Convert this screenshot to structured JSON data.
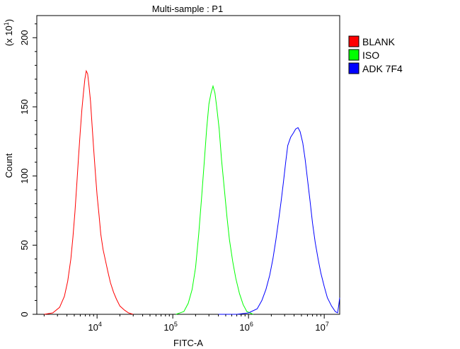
{
  "chart_data": {
    "type": "line",
    "title": "Multi-sample : P1",
    "xlabel": "FITC-A",
    "ylabel": "Count",
    "y_multiplier_label": "(x 10",
    "y_multiplier_exp": "1",
    "y_multiplier_close": ")",
    "x_scale": "log",
    "xlim": [
      1600,
      16000000
    ],
    "ylim": [
      0,
      216
    ],
    "y_ticks": [
      0,
      50,
      100,
      150,
      200
    ],
    "x_ticks": [
      {
        "base": "10",
        "exp": "4",
        "value": 10000
      },
      {
        "base": "10",
        "exp": "5",
        "value": 100000
      },
      {
        "base": "10",
        "exp": "6",
        "value": 1000000
      },
      {
        "base": "10",
        "exp": "7",
        "value": 10000000
      }
    ],
    "grid": false,
    "legend_position": "right",
    "series": [
      {
        "name": "BLANK",
        "color": "#ff0000",
        "x": [
          2000,
          2600,
          3200,
          3700,
          4100,
          4500,
          4800,
          5100,
          5400,
          5700,
          6000,
          6300,
          6600,
          6900,
          7200,
          7500,
          7800,
          8200,
          8600,
          9000,
          9500,
          10000,
          10600,
          11200,
          12000,
          13000,
          14000,
          15000,
          16500,
          18000,
          20000,
          23000,
          26000,
          30000
        ],
        "values": [
          0,
          1,
          5,
          13,
          24,
          40,
          56,
          74,
          94,
          114,
          132,
          148,
          160,
          170,
          176,
          174,
          166,
          154,
          136,
          120,
          102,
          86,
          72,
          58,
          47,
          38,
          30,
          23,
          16,
          11,
          6,
          3,
          1,
          0
        ]
      },
      {
        "name": "ISO",
        "color": "#00ff00",
        "x": [
          110000,
          140000,
          160000,
          180000,
          200000,
          220000,
          240000,
          260000,
          280000,
          300000,
          320000,
          340000,
          360000,
          380000,
          410000,
          440000,
          480000,
          520000,
          560000,
          620000,
          680000,
          760000,
          850000,
          950000,
          1050000,
          1150000
        ],
        "values": [
          0,
          2,
          8,
          18,
          34,
          58,
          84,
          110,
          134,
          152,
          160,
          165,
          160,
          150,
          134,
          112,
          90,
          70,
          54,
          38,
          26,
          15,
          7,
          2,
          1,
          0
        ]
      },
      {
        "name": "ADK 7F4",
        "color": "#0000ff",
        "x": [
          400000,
          700000,
          1000000,
          1300000,
          1500000,
          1700000,
          1900000,
          2100000,
          2300000,
          2500000,
          2700000,
          2900000,
          3100000,
          3300000,
          3600000,
          3900000,
          4200000,
          4500000,
          4800000,
          5200000,
          5600000,
          6000000,
          6500000,
          7000000,
          7600000,
          8300000,
          9000000,
          10000000,
          11000000,
          12500000,
          14000000,
          15000000,
          15500000,
          16000000
        ],
        "values": [
          0,
          0,
          1,
          4,
          10,
          18,
          28,
          40,
          54,
          68,
          82,
          96,
          110,
          122,
          128,
          131,
          134,
          135,
          132,
          124,
          112,
          98,
          82,
          66,
          52,
          40,
          30,
          20,
          12,
          6,
          2,
          1,
          6,
          12
        ]
      }
    ]
  }
}
